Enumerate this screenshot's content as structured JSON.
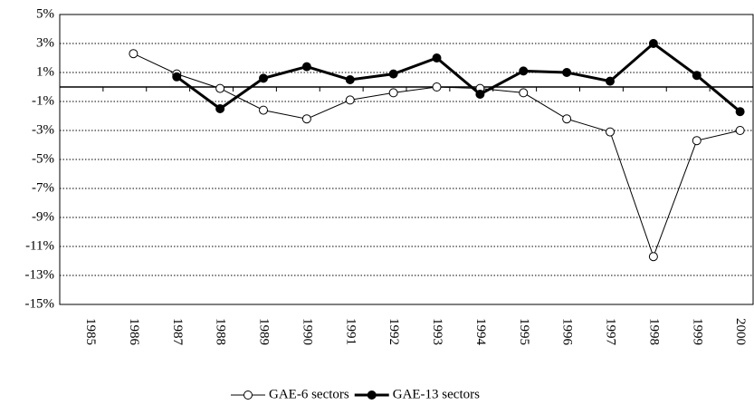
{
  "chart_data": {
    "type": "line",
    "categories": [
      "1985",
      "1986",
      "1987",
      "1988",
      "1989",
      "1990",
      "1991",
      "1992",
      "1993",
      "1994",
      "1995",
      "1996",
      "1997",
      "1998",
      "1999",
      "2000"
    ],
    "series": [
      {
        "name": "GAE-6 sectors",
        "color": "#000000",
        "marker": "open",
        "values": [
          null,
          2.3,
          0.9,
          -0.1,
          -1.6,
          -2.2,
          -0.9,
          -0.4,
          0.0,
          -0.1,
          -0.4,
          -2.2,
          -3.1,
          -11.7,
          -3.7,
          -3.0
        ]
      },
      {
        "name": "GAE-13 sectors",
        "color": "#000000",
        "marker": "filled",
        "values": [
          null,
          null,
          0.7,
          -1.5,
          0.6,
          1.4,
          0.5,
          0.9,
          2.0,
          -0.5,
          1.1,
          1.0,
          0.4,
          3.0,
          0.8,
          -1.7
        ]
      }
    ],
    "ylim": [
      -15,
      5
    ],
    "yticks": [
      {
        "value": -15,
        "label": "-15%"
      },
      {
        "value": -13,
        "label": "-13%"
      },
      {
        "value": -11,
        "label": "-11%"
      },
      {
        "value": -9,
        "label": "-9%"
      },
      {
        "value": -7,
        "label": "-7%"
      },
      {
        "value": -5,
        "label": "-5%"
      },
      {
        "value": -3,
        "label": "-3%"
      },
      {
        "value": -1,
        "label": "-1%"
      },
      {
        "value": 1,
        "label": "1%"
      },
      {
        "value": 3,
        "label": "3%"
      },
      {
        "value": 5,
        "label": "5%"
      }
    ],
    "grid": true,
    "legend": "bottom"
  }
}
